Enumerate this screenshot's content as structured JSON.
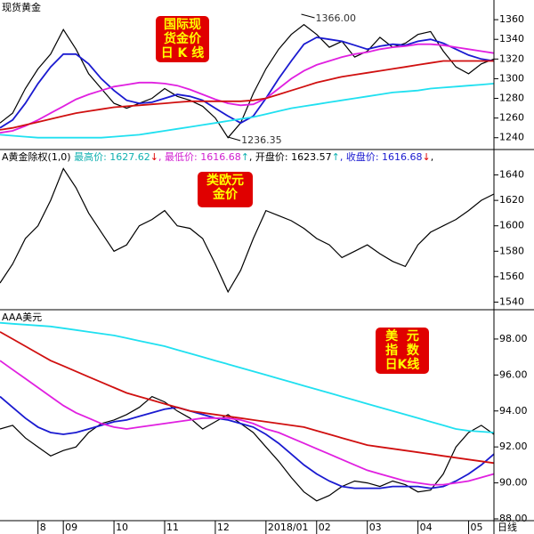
{
  "chart_data": [
    {
      "type": "line",
      "title": "现货黄金",
      "annotations": [
        "1366.00",
        "1236.35"
      ],
      "badge": [
        "国际现",
        "货金价",
        "日 K 线"
      ],
      "ylim": [
        1228,
        1380
      ],
      "yticks": [
        1240,
        1260,
        1280,
        1300,
        1320,
        1340,
        1360
      ],
      "series": [
        {
          "color": "#000000",
          "values": [
            1255,
            1265,
            1290,
            1310,
            1325,
            1350,
            1330,
            1305,
            1290,
            1275,
            1270,
            1275,
            1280,
            1290,
            1282,
            1278,
            1272,
            1260,
            1240,
            1255,
            1285,
            1310,
            1330,
            1345,
            1355,
            1345,
            1332,
            1338,
            1322,
            1328,
            1342,
            1332,
            1336,
            1345,
            1348,
            1328,
            1312,
            1305,
            1315,
            1320
          ]
        },
        {
          "color": "#1a1ad0",
          "values": [
            1250,
            1258,
            1275,
            1295,
            1312,
            1325,
            1325,
            1315,
            1300,
            1288,
            1278,
            1275,
            1276,
            1280,
            1284,
            1282,
            1278,
            1270,
            1262,
            1255,
            1262,
            1280,
            1300,
            1318,
            1335,
            1342,
            1340,
            1338,
            1334,
            1330,
            1333,
            1335,
            1334,
            1338,
            1340,
            1336,
            1330,
            1324,
            1320,
            1318
          ]
        },
        {
          "color": "#e020e0",
          "values": [
            1245,
            1247,
            1252,
            1258,
            1265,
            1272,
            1279,
            1284,
            1288,
            1292,
            1294,
            1296,
            1296,
            1295,
            1293,
            1289,
            1284,
            1279,
            1275,
            1273,
            1274,
            1280,
            1290,
            1300,
            1308,
            1314,
            1318,
            1322,
            1325,
            1327,
            1330,
            1332,
            1333,
            1335,
            1335,
            1334,
            1332,
            1330,
            1328,
            1326
          ]
        },
        {
          "color": "#d01010",
          "values": [
            1248,
            1250,
            1253,
            1256,
            1259,
            1262,
            1265,
            1267,
            1269,
            1271,
            1272,
            1273,
            1274,
            1275,
            1276,
            1277,
            1277,
            1277,
            1277,
            1277,
            1278,
            1280,
            1284,
            1288,
            1292,
            1296,
            1299,
            1302,
            1304,
            1306,
            1308,
            1310,
            1312,
            1314,
            1316,
            1318,
            1318,
            1318,
            1318,
            1318
          ]
        },
        {
          "color": "#20e0f0",
          "values": [
            1243,
            1242,
            1241,
            1240,
            1240,
            1240,
            1240,
            1240,
            1240,
            1241,
            1242,
            1243,
            1245,
            1247,
            1249,
            1251,
            1253,
            1255,
            1257,
            1259,
            1261,
            1264,
            1267,
            1270,
            1272,
            1274,
            1276,
            1278,
            1280,
            1282,
            1284,
            1286,
            1287,
            1288,
            1290,
            1291,
            1292,
            1293,
            1294,
            1295
          ]
        }
      ]
    },
    {
      "type": "line",
      "header": [
        {
          "text": "A黄金除权(1,0)",
          "color": "#000000"
        },
        {
          "text": " 最高价: 1627.62",
          "color": "#10b0b0"
        },
        {
          "text": "↓",
          "color": "#e00000"
        },
        {
          "text": ", 最低价: 1616.68",
          "color": "#d020d0"
        },
        {
          "text": "↑",
          "color": "#10b0b0"
        },
        {
          "text": ", 开盘价: 1623.57",
          "color": "#000000"
        },
        {
          "text": "↑",
          "color": "#10b0b0"
        },
        {
          "text": ", 收盘价: 1616.68",
          "color": "#1a1ad0"
        },
        {
          "text": "↓",
          "color": "#e00000"
        },
        {
          "text": ",",
          "color": "#000000"
        }
      ],
      "badge": [
        "类欧元",
        "金价"
      ],
      "ylim": [
        1534,
        1660
      ],
      "yticks": [
        1540,
        1560,
        1580,
        1600,
        1620,
        1640
      ],
      "series": [
        {
          "color": "#000000",
          "values": [
            1555,
            1570,
            1590,
            1600,
            1620,
            1645,
            1630,
            1610,
            1595,
            1580,
            1585,
            1600,
            1605,
            1612,
            1600,
            1598,
            1590,
            1570,
            1548,
            1565,
            1590,
            1612,
            1608,
            1604,
            1598,
            1590,
            1585,
            1575,
            1580,
            1585,
            1578,
            1572,
            1568,
            1585,
            1595,
            1600,
            1605,
            1612,
            1620,
            1625
          ]
        }
      ]
    },
    {
      "type": "line",
      "title": "AAA美元",
      "badge": [
        "美  元",
        "指  数",
        "日K线"
      ],
      "categories": [
        null,
        null,
        null,
        "8",
        null,
        "09",
        null,
        null,
        null,
        "10",
        null,
        null,
        null,
        "11",
        null,
        null,
        null,
        "12",
        null,
        null,
        null,
        "2018/01",
        null,
        null,
        null,
        "02",
        null,
        null,
        null,
        "03",
        null,
        null,
        null,
        "04",
        null,
        null,
        null,
        "05",
        null,
        null
      ],
      "xlabel": "日线",
      "ylim": [
        87.9,
        99.63
      ],
      "yticks": [
        {
          "value": 88,
          "label": "88.00"
        },
        {
          "value": 90,
          "label": "90.00"
        },
        {
          "value": 92,
          "label": "92.00"
        },
        {
          "value": 94,
          "label": "94.00"
        },
        {
          "value": 96,
          "label": "96.00"
        },
        {
          "value": 98,
          "label": "98.00"
        }
      ],
      "series": [
        {
          "color": "#000000",
          "values": [
            93.0,
            93.2,
            92.5,
            92.0,
            91.5,
            91.8,
            92.0,
            92.8,
            93.3,
            93.5,
            93.8,
            94.2,
            94.8,
            94.5,
            94.0,
            93.6,
            93.0,
            93.4,
            93.8,
            93.3,
            92.8,
            92.0,
            91.2,
            90.3,
            89.5,
            89.0,
            89.3,
            89.8,
            90.1,
            90.0,
            89.8,
            90.1,
            89.9,
            89.5,
            89.6,
            90.5,
            92.0,
            92.8,
            93.2,
            92.7
          ]
        },
        {
          "color": "#1a1ad0",
          "values": [
            94.8,
            94.2,
            93.6,
            93.1,
            92.8,
            92.7,
            92.8,
            93.0,
            93.2,
            93.4,
            93.5,
            93.7,
            93.9,
            94.1,
            94.2,
            94.0,
            93.8,
            93.6,
            93.5,
            93.3,
            93.1,
            92.7,
            92.2,
            91.6,
            91.0,
            90.5,
            90.1,
            89.8,
            89.7,
            89.7,
            89.7,
            89.8,
            89.8,
            89.8,
            89.7,
            89.8,
            90.1,
            90.5,
            91.0,
            91.6
          ]
        },
        {
          "color": "#e020e0",
          "values": [
            96.8,
            96.3,
            95.8,
            95.3,
            94.8,
            94.3,
            93.9,
            93.6,
            93.3,
            93.1,
            93.0,
            93.1,
            93.2,
            93.3,
            93.4,
            93.5,
            93.6,
            93.6,
            93.6,
            93.5,
            93.3,
            93.0,
            92.8,
            92.5,
            92.2,
            91.9,
            91.6,
            91.3,
            91.0,
            90.7,
            90.5,
            90.3,
            90.1,
            90.0,
            89.9,
            89.9,
            90.0,
            90.1,
            90.3,
            90.5
          ]
        },
        {
          "color": "#d01010",
          "values": [
            98.4,
            98.0,
            97.6,
            97.2,
            96.8,
            96.5,
            96.2,
            95.9,
            95.6,
            95.3,
            95.0,
            94.8,
            94.6,
            94.4,
            94.2,
            94.0,
            93.9,
            93.8,
            93.7,
            93.6,
            93.5,
            93.4,
            93.3,
            93.2,
            93.1,
            92.9,
            92.7,
            92.5,
            92.3,
            92.1,
            92.0,
            91.9,
            91.8,
            91.7,
            91.6,
            91.5,
            91.4,
            91.3,
            91.2,
            91.1
          ]
        },
        {
          "color": "#20e0f0",
          "values": [
            98.9,
            98.85,
            98.8,
            98.75,
            98.7,
            98.6,
            98.5,
            98.4,
            98.3,
            98.2,
            98.05,
            97.9,
            97.75,
            97.6,
            97.4,
            97.2,
            97.0,
            96.8,
            96.6,
            96.4,
            96.2,
            96.0,
            95.8,
            95.6,
            95.4,
            95.2,
            95.0,
            94.8,
            94.6,
            94.4,
            94.2,
            94.0,
            93.8,
            93.6,
            93.4,
            93.2,
            93.0,
            92.9,
            92.85,
            92.8
          ]
        }
      ]
    }
  ]
}
